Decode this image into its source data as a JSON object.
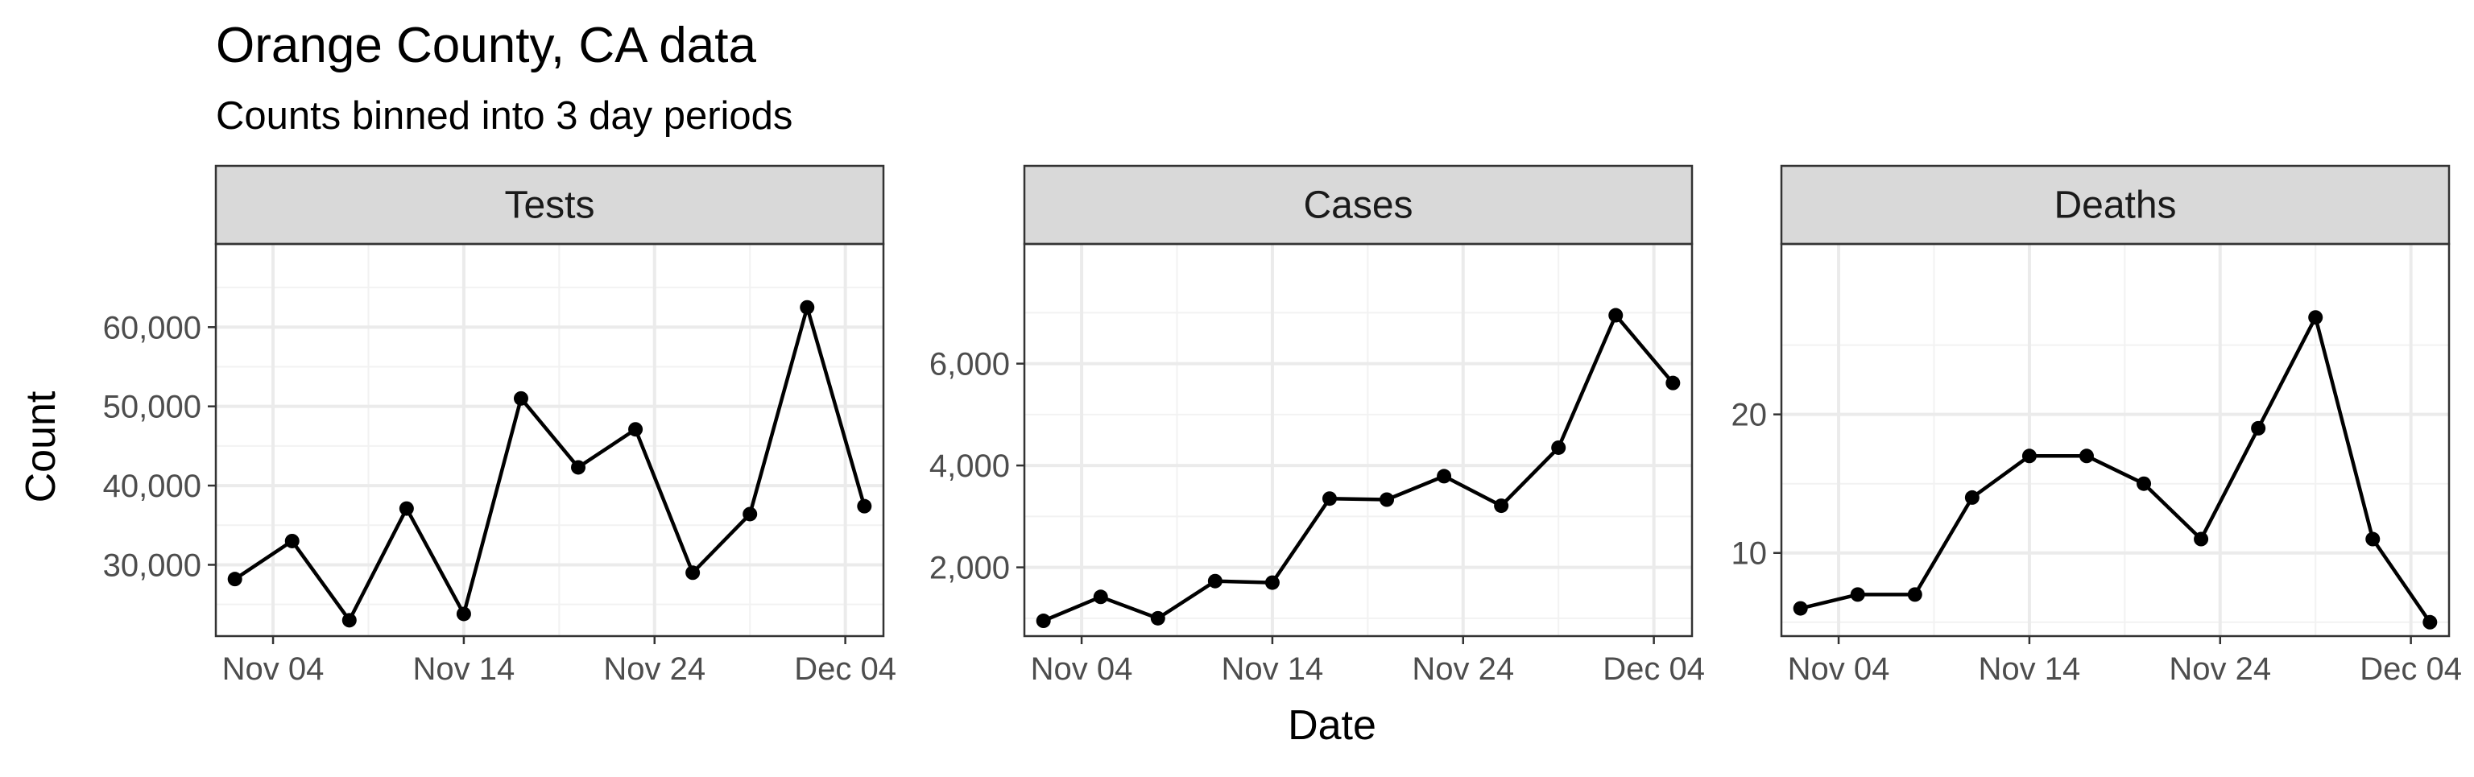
{
  "title": "Orange County, CA data",
  "subtitle": "Counts binned into 3 day periods",
  "xlabel": "Date",
  "ylabel": "Count",
  "chart_data": [
    {
      "type": "line",
      "facet": "Tests",
      "x": [
        "2020-11-02",
        "2020-11-05",
        "2020-11-08",
        "2020-11-11",
        "2020-11-14",
        "2020-11-17",
        "2020-11-20",
        "2020-11-23",
        "2020-11-26",
        "2020-11-29",
        "2020-12-02",
        "2020-12-05"
      ],
      "y": [
        28200,
        33000,
        23000,
        37100,
        23800,
        51000,
        42300,
        47100,
        29000,
        36400,
        62500,
        37400
      ],
      "xlim": [
        "2020-11-01",
        "2020-12-06"
      ],
      "ylim": [
        21000,
        70500
      ],
      "x_ticks": [
        "Nov 04",
        "Nov 14",
        "Nov 24",
        "Dec 04"
      ],
      "y_ticks": [
        "30,000",
        "40,000",
        "50,000",
        "60,000"
      ],
      "y_tick_values": [
        30000,
        40000,
        50000,
        60000
      ],
      "grid": true
    },
    {
      "type": "line",
      "facet": "Cases",
      "x": [
        "2020-11-02",
        "2020-11-05",
        "2020-11-08",
        "2020-11-11",
        "2020-11-14",
        "2020-11-17",
        "2020-11-20",
        "2020-11-23",
        "2020-11-26",
        "2020-11-29",
        "2020-12-02",
        "2020-12-05"
      ],
      "y": [
        950,
        1420,
        1000,
        1730,
        1700,
        3350,
        3330,
        3790,
        3210,
        4350,
        6950,
        5620
      ],
      "xlim": [
        "2020-11-01",
        "2020-12-06"
      ],
      "ylim": [
        650,
        8350
      ],
      "x_ticks": [
        "Nov 04",
        "Nov 14",
        "Nov 24",
        "Dec 04"
      ],
      "y_ticks": [
        "2,000",
        "4,000",
        "6,000"
      ],
      "y_tick_values": [
        2000,
        4000,
        6000
      ],
      "grid": true
    },
    {
      "type": "line",
      "facet": "Deaths",
      "x": [
        "2020-11-02",
        "2020-11-05",
        "2020-11-08",
        "2020-11-11",
        "2020-11-14",
        "2020-11-17",
        "2020-11-20",
        "2020-11-23",
        "2020-11-26",
        "2020-11-29",
        "2020-12-02",
        "2020-12-05"
      ],
      "y": [
        6,
        7,
        7,
        14,
        17,
        17,
        15,
        11,
        19,
        27,
        11,
        5
      ],
      "xlim": [
        "2020-11-01",
        "2020-12-06"
      ],
      "ylim": [
        4,
        32.3
      ],
      "x_ticks": [
        "Nov 04",
        "Nov 14",
        "Nov 24",
        "Dec 04"
      ],
      "y_ticks": [
        "10",
        "20"
      ],
      "y_tick_values": [
        10,
        20
      ],
      "grid": true
    }
  ]
}
